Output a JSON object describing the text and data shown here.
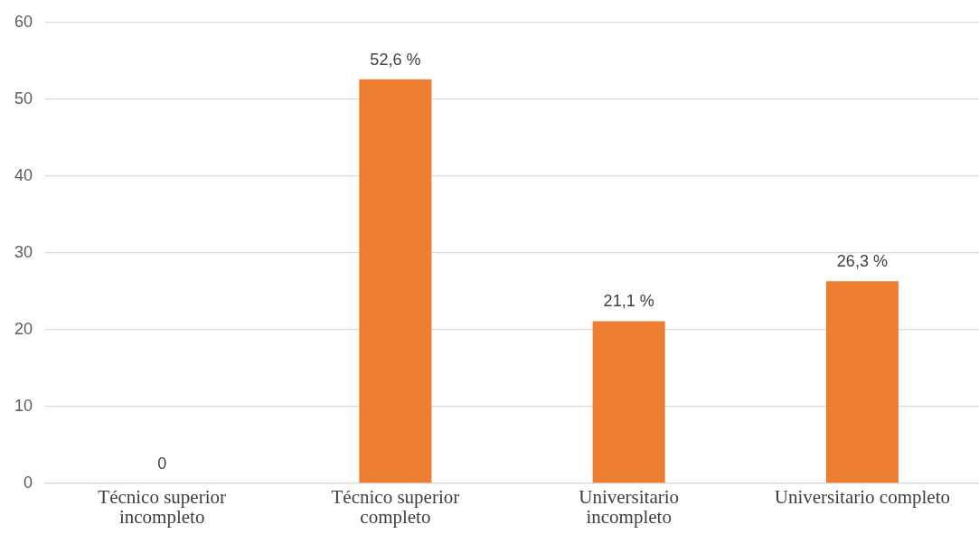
{
  "chart_data": {
    "type": "bar",
    "categories": [
      "Técnico superior incompleto",
      "Técnico superior completo",
      "Universitario incompleto",
      "Universitario completo"
    ],
    "values": [
      0,
      52.6,
      21.1,
      26.3
    ],
    "value_labels": [
      "0",
      "52,6 %",
      "21,1 %",
      "26,3 %"
    ],
    "color": "#ed7d31",
    "ylim": [
      0,
      60
    ],
    "yticks": [
      0,
      10,
      20,
      30,
      40,
      50,
      60
    ],
    "grid": "y",
    "legend": false
  }
}
